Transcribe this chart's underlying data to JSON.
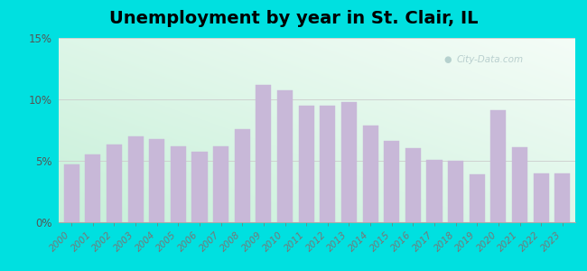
{
  "title": "Unemployment by year in St. Clair, IL",
  "years": [
    2000,
    2001,
    2002,
    2003,
    2004,
    2005,
    2006,
    2007,
    2008,
    2009,
    2010,
    2011,
    2012,
    2013,
    2014,
    2015,
    2016,
    2017,
    2018,
    2019,
    2020,
    2021,
    2022,
    2023
  ],
  "values": [
    4.7,
    5.5,
    6.3,
    7.0,
    6.8,
    6.2,
    5.7,
    6.2,
    7.6,
    11.2,
    10.7,
    9.5,
    9.5,
    9.8,
    7.9,
    6.6,
    6.0,
    5.1,
    5.0,
    3.9,
    9.1,
    6.1,
    4.0,
    4.0
  ],
  "bar_color": "#c8b8d8",
  "bar_edge_color": "#c8b8d8",
  "ylim": [
    0,
    15
  ],
  "yticks": [
    0,
    5,
    10,
    15
  ],
  "ytick_labels": [
    "0%",
    "5%",
    "10%",
    "15%"
  ],
  "title_fontsize": 14,
  "outer_bg": "#00e0e0",
  "watermark": "City-Data.com",
  "grid_color": "#cccccc",
  "bg_left_bottom": "#c8f0d8",
  "bg_right_top": "#f0faf8"
}
